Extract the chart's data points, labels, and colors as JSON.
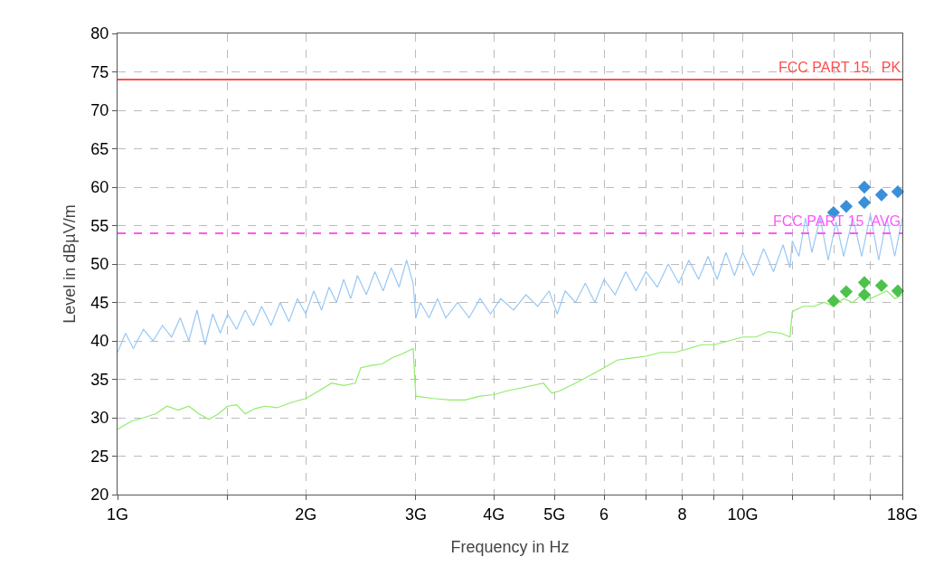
{
  "chart_data": {
    "type": "line",
    "xlabel": "Frequency in Hz",
    "ylabel": "Level in dBµV/m",
    "log": "x",
    "grid": true,
    "xlim": [
      1,
      18
    ],
    "ylim": [
      20,
      80
    ],
    "xticks": [
      {
        "value": 1,
        "label": "1G"
      },
      {
        "value": 1.5,
        "label": null
      },
      {
        "value": 2,
        "label": "2G"
      },
      {
        "value": 3,
        "label": "3G"
      },
      {
        "value": 4,
        "label": "4G"
      },
      {
        "value": 5,
        "label": "5G"
      },
      6,
      {
        "value": 7,
        "label": null
      },
      8,
      {
        "value": 9,
        "label": null
      },
      {
        "value": 10,
        "label": "10G"
      },
      {
        "value": 12,
        "label": null
      },
      {
        "value": 14,
        "label": null
      },
      {
        "value": 16,
        "label": null
      },
      {
        "value": 18,
        "label": "18G"
      }
    ],
    "yticks": [
      20,
      25,
      30,
      35,
      40,
      45,
      50,
      55,
      60,
      65,
      70,
      75,
      80
    ],
    "ref_lines": [
      {
        "axis": "y",
        "value": 74,
        "label": "FCC PART 15   PK",
        "color": "#ff4d4d",
        "line_style": "solid"
      },
      {
        "axis": "y",
        "value": 54,
        "label": "FCC PART 15  AVG",
        "color": "#ff55ff",
        "line_style": "dashed"
      }
    ],
    "series": [
      {
        "type": "line",
        "color": "#99c8f5",
        "x": [
          1.0,
          1.03,
          1.06,
          1.1,
          1.14,
          1.18,
          1.22,
          1.26,
          1.3,
          1.34,
          1.38,
          1.42,
          1.46,
          1.5,
          1.55,
          1.6,
          1.65,
          1.7,
          1.76,
          1.82,
          1.88,
          1.94,
          2.0,
          2.06,
          2.12,
          2.18,
          2.24,
          2.3,
          2.36,
          2.42,
          2.5,
          2.58,
          2.66,
          2.74,
          2.82,
          2.9,
          2.97,
          3.0,
          3.05,
          3.15,
          3.25,
          3.35,
          3.5,
          3.65,
          3.8,
          3.95,
          4.1,
          4.3,
          4.5,
          4.7,
          4.9,
          5.05,
          5.2,
          5.4,
          5.6,
          5.8,
          6.0,
          6.25,
          6.5,
          6.75,
          7.0,
          7.3,
          7.6,
          7.9,
          8.2,
          8.5,
          8.8,
          9.1,
          9.4,
          9.7,
          10.0,
          10.4,
          10.8,
          11.2,
          11.6,
          11.9,
          12.0,
          12.3,
          12.6,
          12.9,
          13.3,
          13.7,
          14.1,
          14.5,
          15.0,
          15.5,
          16.0,
          16.5,
          17.0,
          17.5,
          18.0
        ],
        "values": [
          38.5,
          41,
          39,
          41.5,
          40,
          42,
          40.5,
          43,
          40,
          44,
          39.5,
          43.5,
          41,
          43.5,
          41.5,
          44,
          42,
          44.5,
          42,
          45,
          42.5,
          45.5,
          43.5,
          46.5,
          44,
          47,
          45,
          48,
          45.5,
          48.5,
          46,
          49,
          46.5,
          49.5,
          47,
          50.5,
          47.5,
          43,
          45,
          43,
          45.5,
          43,
          45,
          43,
          45.5,
          43.5,
          45.5,
          44,
          46,
          44.5,
          46.5,
          43.5,
          46.5,
          45,
          47.5,
          45,
          48,
          46,
          49,
          46.5,
          49,
          47,
          50,
          47.5,
          50.5,
          48,
          51,
          48,
          51.5,
          48.5,
          51.5,
          48.5,
          52,
          49,
          52.5,
          49.5,
          53,
          51,
          56,
          51.5,
          56,
          50.5,
          55.5,
          51,
          56,
          51,
          56.5,
          50.5,
          56,
          51,
          56
        ]
      },
      {
        "type": "line",
        "color": "#8fec6a",
        "x": [
          1.0,
          1.05,
          1.1,
          1.15,
          1.2,
          1.25,
          1.3,
          1.35,
          1.4,
          1.45,
          1.5,
          1.55,
          1.6,
          1.66,
          1.72,
          1.8,
          1.9,
          2.0,
          2.1,
          2.2,
          2.3,
          2.4,
          2.45,
          2.55,
          2.65,
          2.75,
          2.85,
          2.97,
          3.0,
          3.2,
          3.4,
          3.6,
          3.8,
          4.0,
          4.2,
          4.5,
          4.8,
          4.95,
          5.1,
          5.4,
          5.7,
          6.0,
          6.3,
          6.7,
          7.0,
          7.4,
          7.8,
          8.2,
          8.6,
          9.0,
          9.5,
          10.0,
          10.5,
          11.0,
          11.5,
          11.9,
          12.0,
          12.5,
          13.0,
          13.5,
          14.0,
          14.5,
          15.0,
          15.5,
          16.0,
          16.5,
          17.0,
          17.5,
          18.0
        ],
        "values": [
          28.5,
          29.5,
          30,
          30.5,
          31.5,
          31,
          31.5,
          30.5,
          29.8,
          30.5,
          31.5,
          31.7,
          30.5,
          31.2,
          31.5,
          31.3,
          32,
          32.5,
          33.5,
          34.5,
          34.2,
          34.5,
          36.5,
          36.8,
          37,
          37.8,
          38.3,
          39,
          32.8,
          32.5,
          32.3,
          32.3,
          32.8,
          33,
          33.5,
          34,
          34.5,
          33.2,
          33.5,
          34.5,
          35.5,
          36.5,
          37.5,
          37.8,
          38,
          38.5,
          38.5,
          39,
          39.5,
          39.5,
          40,
          40.5,
          40.5,
          41.2,
          41,
          40.5,
          43.8,
          44.5,
          44.5,
          45,
          44.5,
          45.5,
          45,
          46,
          45.5,
          46,
          46.5,
          45.5,
          46
        ]
      },
      {
        "type": "scatter",
        "color": "#3a8fd9",
        "marker": "diamond",
        "x": [
          13.97,
          14.64,
          15.65,
          15.65,
          16.67,
          17.7
        ],
        "values": [
          56.7,
          57.5,
          60,
          58,
          59,
          59.4
        ]
      },
      {
        "type": "scatter",
        "color": "#4cc24c",
        "marker": "diamond",
        "x": [
          13.97,
          14.64,
          15.65,
          15.65,
          16.67,
          17.7
        ],
        "values": [
          45.2,
          46.4,
          47.6,
          46,
          47.2,
          46.5
        ]
      }
    ]
  }
}
